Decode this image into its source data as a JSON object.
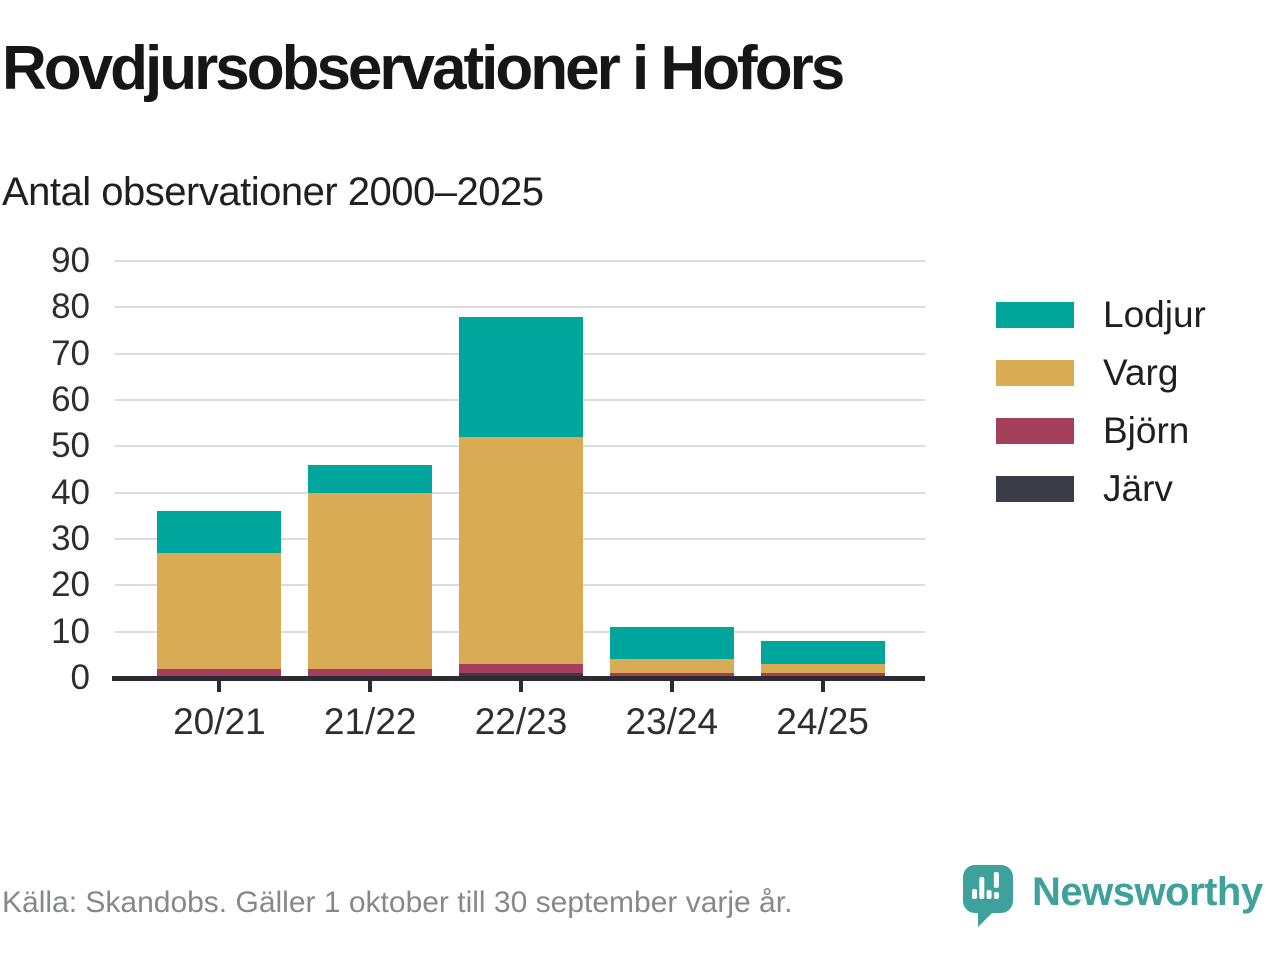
{
  "title": "Rovdjursobservationer i Hofors",
  "subtitle": "Antal observationer 2000–2025",
  "footer": {
    "source": "Källa: Skandobs. Gäller 1 oktober till 30 september varje år.",
    "brand": "Newsworthy"
  },
  "colors": {
    "axis": "#2b2b31",
    "gridline": "#dcdcdc",
    "brand_teal": "#3fa19b"
  },
  "chart_data": {
    "type": "bar",
    "stacked": true,
    "title": "Rovdjursobservationer i Hofors",
    "subtitle": "Antal observationer 2000–2025",
    "categories": [
      "20/21",
      "21/22",
      "22/23",
      "23/24",
      "24/25"
    ],
    "series": [
      {
        "name": "Lodjur",
        "color": "#00a69b",
        "values": [
          9,
          6,
          26,
          7,
          5
        ]
      },
      {
        "name": "Varg",
        "color": "#d9ab55",
        "values": [
          25,
          38,
          49,
          3,
          2
        ]
      },
      {
        "name": "Björn",
        "color": "#a43f5b",
        "values": [
          2,
          2,
          2,
          1,
          1
        ]
      },
      {
        "name": "Järv",
        "color": "#3b3b48",
        "values": [
          0,
          0,
          1,
          0,
          0
        ]
      }
    ],
    "totals": [
      36,
      46,
      78,
      11,
      8
    ],
    "xlabel": "",
    "ylabel": "",
    "ylim": [
      0,
      90
    ],
    "yticks": [
      0,
      10,
      20,
      30,
      40,
      50,
      60,
      70,
      80,
      90
    ],
    "grid": "horizontal",
    "legend_position": "right"
  }
}
